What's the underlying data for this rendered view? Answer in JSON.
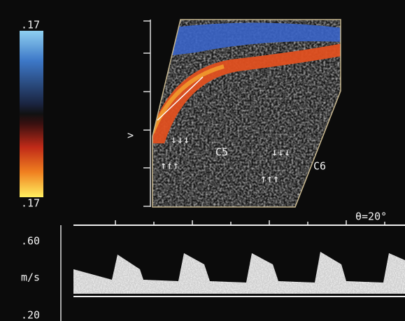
{
  "colorbar": {
    "top_label": ".17",
    "bottom_label": ".17"
  },
  "image": {
    "marker": ">",
    "labels": [
      "C5",
      "C6"
    ],
    "arrows": {
      "down": "↓↓↓",
      "up": "↑↑↑"
    }
  },
  "spectral": {
    "angle": "θ=20°",
    "scale": {
      "top": ".60",
      "unit": "m/s",
      "bottom": ".20"
    }
  }
}
